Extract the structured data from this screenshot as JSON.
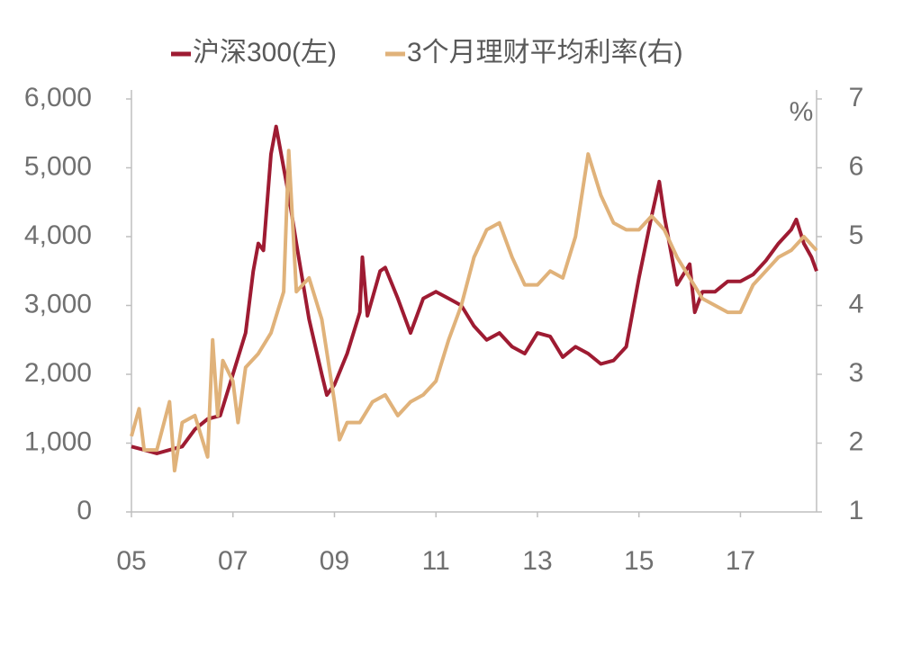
{
  "chart_data": {
    "type": "line",
    "legend": "top",
    "y2_label": "%",
    "xlim": [
      2005,
      2018.5
    ],
    "xticks": [
      {
        "value": 2005,
        "label": "05"
      },
      {
        "value": 2007,
        "label": "07"
      },
      {
        "value": 2009,
        "label": "09"
      },
      {
        "value": 2011,
        "label": "11"
      },
      {
        "value": 2013,
        "label": "13"
      },
      {
        "value": 2015,
        "label": "15"
      },
      {
        "value": 2017,
        "label": "17"
      }
    ],
    "ylim": [
      0,
      6000
    ],
    "yticks": [
      0,
      {
        "value": 1000,
        "label": "1,000"
      },
      {
        "value": 2000,
        "label": "2,000"
      },
      {
        "value": 3000,
        "label": "3,000"
      },
      {
        "value": 4000,
        "label": "4,000"
      },
      {
        "value": 5000,
        "label": "5,000"
      },
      {
        "value": 6000,
        "label": "6,000"
      }
    ],
    "y2lim": [
      1,
      7
    ],
    "y2ticks": [
      1,
      2,
      3,
      4,
      5,
      6,
      7
    ],
    "series": [
      {
        "name": "沪深300(左)",
        "color": "#9e1b32",
        "axis": "y",
        "x": [
          2005.0,
          2005.25,
          2005.5,
          2005.75,
          2006.0,
          2006.25,
          2006.5,
          2006.75,
          2007.0,
          2007.25,
          2007.4,
          2007.5,
          2007.6,
          2007.75,
          2007.85,
          2008.0,
          2008.1,
          2008.25,
          2008.5,
          2008.75,
          2008.85,
          2009.0,
          2009.25,
          2009.5,
          2009.55,
          2009.65,
          2009.9,
          2010.0,
          2010.25,
          2010.5,
          2010.75,
          2011.0,
          2011.25,
          2011.5,
          2011.75,
          2012.0,
          2012.25,
          2012.5,
          2012.75,
          2013.0,
          2013.25,
          2013.5,
          2013.75,
          2014.0,
          2014.25,
          2014.5,
          2014.75,
          2015.0,
          2015.25,
          2015.4,
          2015.5,
          2015.75,
          2016.0,
          2016.1,
          2016.25,
          2016.5,
          2016.75,
          2017.0,
          2017.25,
          2017.5,
          2017.75,
          2018.0,
          2018.1,
          2018.25,
          2018.4,
          2018.5
        ],
        "values": [
          950,
          900,
          850,
          900,
          950,
          1200,
          1350,
          1400,
          2000,
          2600,
          3500,
          3900,
          3800,
          5200,
          5600,
          5000,
          4600,
          3900,
          2800,
          2000,
          1700,
          1850,
          2300,
          2900,
          3700,
          2850,
          3500,
          3550,
          3100,
          2600,
          3100,
          3200,
          3100,
          3000,
          2700,
          2500,
          2600,
          2400,
          2300,
          2600,
          2550,
          2250,
          2400,
          2300,
          2150,
          2200,
          2400,
          3400,
          4300,
          4800,
          4300,
          3300,
          3600,
          2900,
          3200,
          3200,
          3350,
          3350,
          3450,
          3650,
          3900,
          4100,
          4250,
          3900,
          3700,
          3500
        ]
      },
      {
        "name": "3个月理财平均利率(右)",
        "color": "#e0b27a",
        "axis": "y2",
        "x": [
          2005.0,
          2005.15,
          2005.25,
          2005.5,
          2005.75,
          2005.85,
          2006.0,
          2006.25,
          2006.5,
          2006.6,
          2006.7,
          2006.8,
          2007.0,
          2007.1,
          2007.25,
          2007.5,
          2007.75,
          2008.0,
          2008.1,
          2008.25,
          2008.5,
          2008.75,
          2009.0,
          2009.1,
          2009.25,
          2009.5,
          2009.75,
          2010.0,
          2010.25,
          2010.5,
          2010.75,
          2011.0,
          2011.25,
          2011.5,
          2011.75,
          2012.0,
          2012.25,
          2012.5,
          2012.75,
          2013.0,
          2013.25,
          2013.5,
          2013.75,
          2014.0,
          2014.25,
          2014.5,
          2014.75,
          2015.0,
          2015.25,
          2015.5,
          2015.75,
          2016.0,
          2016.25,
          2016.5,
          2016.75,
          2017.0,
          2017.25,
          2017.5,
          2017.75,
          2018.0,
          2018.25,
          2018.5
        ],
        "values": [
          2.1,
          2.5,
          1.9,
          1.9,
          2.6,
          1.6,
          2.3,
          2.4,
          1.8,
          3.5,
          2.4,
          3.2,
          2.9,
          2.3,
          3.1,
          3.3,
          3.6,
          4.2,
          6.25,
          4.2,
          4.4,
          3.8,
          2.6,
          2.05,
          2.3,
          2.3,
          2.6,
          2.7,
          2.4,
          2.6,
          2.7,
          2.9,
          3.5,
          4.0,
          4.7,
          5.1,
          5.2,
          4.7,
          4.3,
          4.3,
          4.5,
          4.4,
          5.0,
          6.2,
          5.6,
          5.2,
          5.1,
          5.1,
          5.3,
          5.1,
          4.7,
          4.4,
          4.1,
          4.0,
          3.9,
          3.9,
          4.3,
          4.5,
          4.7,
          4.8,
          5.0,
          4.8
        ]
      }
    ]
  }
}
